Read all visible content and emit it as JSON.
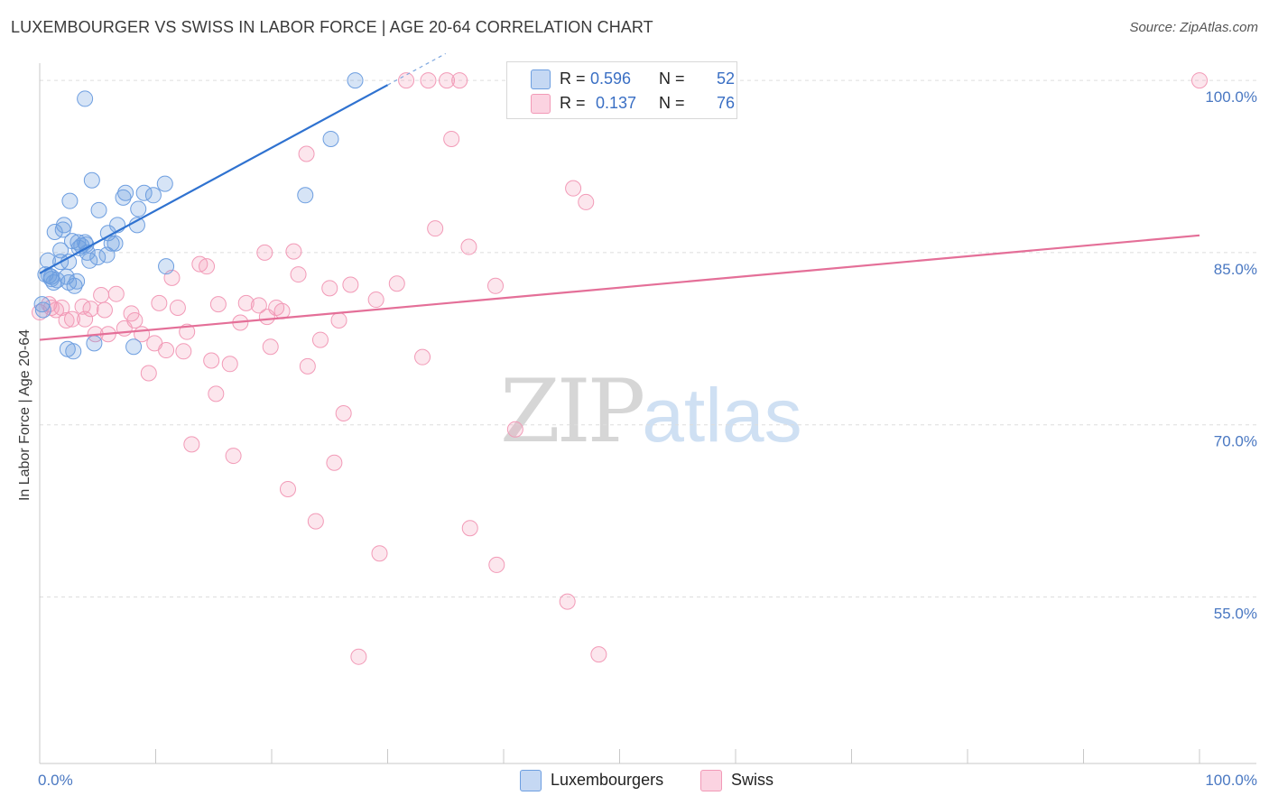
{
  "chart_data": {
    "type": "scatter",
    "title": "LUXEMBOURGER VS SWISS IN LABOR FORCE | AGE 20-64 CORRELATION CHART",
    "source": "Source: ZipAtlas.com",
    "xlabel": "",
    "ylabel": "In Labor Force | Age 20-64",
    "xlim": [
      0,
      100
    ],
    "ylim": [
      40.5,
      101.5
    ],
    "x_tick_labels": {
      "left": "0.0%",
      "right": "100.0%"
    },
    "y_ticks": [
      {
        "value": 55,
        "label": "55.0%"
      },
      {
        "value": 70,
        "label": "70.0%"
      },
      {
        "value": 85,
        "label": "85.0%"
      },
      {
        "value": 100,
        "label": "100.0%"
      }
    ],
    "grid": true,
    "legend": {
      "position": "top-center",
      "rows": [
        {
          "r_label": "R =",
          "r": "0.596",
          "n_label": "N =",
          "n": "52",
          "color": "#6d9ee0"
        },
        {
          "r_label": "R =",
          "r": "0.137",
          "n_label": "N =",
          "n": "76",
          "color": "#f29ab7"
        }
      ]
    },
    "series": [
      {
        "name": "Luxembourgers",
        "color": "#6d9ee0",
        "trend": {
          "x": [
            0,
            30
          ],
          "y": [
            83.2,
            99.6
          ],
          "dashed_to_x": 35
        },
        "points": [
          [
            0.2,
            80.5
          ],
          [
            0.5,
            83.1
          ],
          [
            0.7,
            84.3
          ],
          [
            0.8,
            83.0
          ],
          [
            1.0,
            82.9
          ],
          [
            1.2,
            82.4
          ],
          [
            1.3,
            86.8
          ],
          [
            1.5,
            82.6
          ],
          [
            1.8,
            84.2
          ],
          [
            1.8,
            85.2
          ],
          [
            2.0,
            87.0
          ],
          [
            2.1,
            87.4
          ],
          [
            2.3,
            82.9
          ],
          [
            2.4,
            76.6
          ],
          [
            2.5,
            84.2
          ],
          [
            2.6,
            89.5
          ],
          [
            2.8,
            86.0
          ],
          [
            2.9,
            76.4
          ],
          [
            3.0,
            82.1
          ],
          [
            3.2,
            82.5
          ],
          [
            3.3,
            85.9
          ],
          [
            3.4,
            85.4
          ],
          [
            3.6,
            85.6
          ],
          [
            3.9,
            85.9
          ],
          [
            3.9,
            98.4
          ],
          [
            4.1,
            85.0
          ],
          [
            4.3,
            84.3
          ],
          [
            4.5,
            91.3
          ],
          [
            4.7,
            77.1
          ],
          [
            5.0,
            84.6
          ],
          [
            5.1,
            88.7
          ],
          [
            5.8,
            84.8
          ],
          [
            5.9,
            86.7
          ],
          [
            6.5,
            85.8
          ],
          [
            6.7,
            87.4
          ],
          [
            7.2,
            89.8
          ],
          [
            7.4,
            90.2
          ],
          [
            8.1,
            76.8
          ],
          [
            8.4,
            87.4
          ],
          [
            8.5,
            88.8
          ],
          [
            9.0,
            90.2
          ],
          [
            9.8,
            90.0
          ],
          [
            10.8,
            91.0
          ],
          [
            10.9,
            83.8
          ],
          [
            22.9,
            90.0
          ],
          [
            25.1,
            94.9
          ],
          [
            27.2,
            100.0
          ],
          [
            0.3,
            80.0
          ],
          [
            1.0,
            82.7
          ],
          [
            4.0,
            85.7
          ],
          [
            2.5,
            82.4
          ],
          [
            6.2,
            85.8
          ]
        ]
      },
      {
        "name": "Swiss",
        "color": "#f29ab7",
        "trend": {
          "x": [
            0,
            100
          ],
          "y": [
            77.4,
            86.5
          ]
        },
        "points": [
          [
            0.0,
            79.8
          ],
          [
            0.8,
            80.5
          ],
          [
            1.4,
            80.0
          ],
          [
            1.9,
            80.2
          ],
          [
            2.3,
            79.1
          ],
          [
            2.8,
            79.2
          ],
          [
            3.7,
            80.3
          ],
          [
            3.9,
            79.2
          ],
          [
            4.4,
            80.1
          ],
          [
            4.8,
            77.9
          ],
          [
            5.3,
            81.3
          ],
          [
            5.6,
            80.0
          ],
          [
            5.9,
            77.9
          ],
          [
            6.6,
            81.4
          ],
          [
            7.3,
            78.4
          ],
          [
            7.9,
            79.7
          ],
          [
            8.2,
            79.1
          ],
          [
            8.8,
            77.9
          ],
          [
            9.4,
            74.5
          ],
          [
            9.9,
            77.1
          ],
          [
            10.3,
            80.6
          ],
          [
            10.9,
            76.5
          ],
          [
            11.4,
            82.8
          ],
          [
            11.9,
            80.2
          ],
          [
            12.4,
            76.4
          ],
          [
            12.7,
            78.1
          ],
          [
            13.1,
            68.3
          ],
          [
            13.8,
            84.0
          ],
          [
            14.4,
            83.8
          ],
          [
            14.8,
            75.6
          ],
          [
            15.2,
            72.7
          ],
          [
            15.4,
            80.5
          ],
          [
            16.4,
            75.3
          ],
          [
            16.7,
            67.3
          ],
          [
            17.3,
            78.9
          ],
          [
            17.8,
            80.6
          ],
          [
            18.9,
            80.4
          ],
          [
            19.4,
            85.0
          ],
          [
            19.6,
            79.4
          ],
          [
            19.9,
            76.8
          ],
          [
            20.4,
            80.2
          ],
          [
            20.9,
            79.9
          ],
          [
            21.4,
            64.4
          ],
          [
            21.9,
            85.1
          ],
          [
            22.3,
            83.1
          ],
          [
            23.0,
            93.6
          ],
          [
            23.1,
            75.1
          ],
          [
            23.8,
            61.6
          ],
          [
            24.2,
            77.4
          ],
          [
            25.0,
            81.9
          ],
          [
            25.4,
            66.7
          ],
          [
            25.8,
            79.1
          ],
          [
            26.2,
            71.0
          ],
          [
            26.8,
            82.2
          ],
          [
            27.5,
            49.8
          ],
          [
            29.0,
            80.9
          ],
          [
            29.3,
            58.8
          ],
          [
            30.8,
            82.3
          ],
          [
            31.6,
            100.0
          ],
          [
            33.0,
            75.9
          ],
          [
            33.5,
            100.0
          ],
          [
            34.1,
            87.1
          ],
          [
            35.1,
            100.0
          ],
          [
            35.5,
            94.9
          ],
          [
            36.2,
            100.0
          ],
          [
            37.0,
            85.5
          ],
          [
            37.1,
            61.0
          ],
          [
            39.3,
            82.1
          ],
          [
            39.4,
            57.8
          ],
          [
            41.0,
            69.6
          ],
          [
            45.5,
            54.6
          ],
          [
            46.0,
            90.6
          ],
          [
            47.1,
            89.4
          ],
          [
            48.2,
            50.0
          ],
          [
            100.0,
            100.0
          ],
          [
            1.0,
            80.2
          ]
        ]
      }
    ]
  },
  "bottom_legend": [
    {
      "label": "Luxembourgers",
      "color": "#6d9ee0"
    },
    {
      "label": "Swiss",
      "color": "#f29ab7"
    }
  ],
  "watermark": {
    "left": "ZIP",
    "right": "atlas"
  }
}
